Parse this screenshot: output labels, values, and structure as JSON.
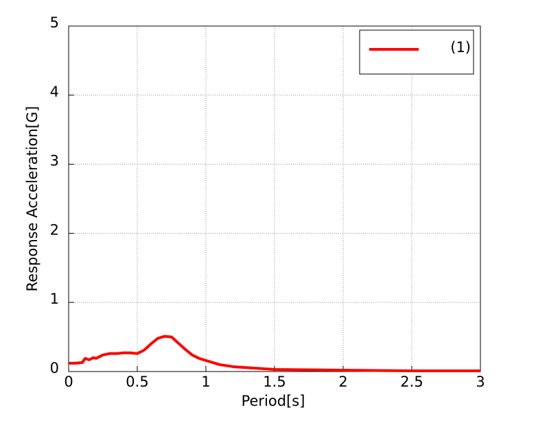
{
  "chart_data": {
    "type": "line",
    "x_label": "Period[s]",
    "y_label": "Response Acceleration[G]",
    "x": [
      0,
      0.05,
      0.1,
      0.12,
      0.15,
      0.18,
      0.2,
      0.25,
      0.3,
      0.35,
      0.4,
      0.45,
      0.5,
      0.55,
      0.6,
      0.65,
      0.7,
      0.75,
      0.8,
      0.85,
      0.9,
      0.95,
      1.0,
      1.1,
      1.2,
      1.35,
      1.5,
      1.75,
      2.0,
      2.5,
      3.0
    ],
    "series": [
      {
        "name": "(1)",
        "color": "#ff0000",
        "values": [
          0.12,
          0.12,
          0.13,
          0.19,
          0.17,
          0.2,
          0.19,
          0.24,
          0.26,
          0.26,
          0.27,
          0.27,
          0.26,
          0.31,
          0.4,
          0.48,
          0.51,
          0.5,
          0.41,
          0.32,
          0.24,
          0.19,
          0.16,
          0.1,
          0.07,
          0.05,
          0.03,
          0.025,
          0.02,
          0.01,
          0.01
        ]
      }
    ],
    "xlim": [
      0,
      3
    ],
    "xticks": [
      0,
      0.5,
      1,
      1.5,
      2,
      2.5,
      3
    ],
    "ylim": [
      0,
      5
    ],
    "yticks": [
      0,
      1,
      2,
      3,
      4,
      5
    ],
    "grid": true,
    "legend": "upper right"
  }
}
